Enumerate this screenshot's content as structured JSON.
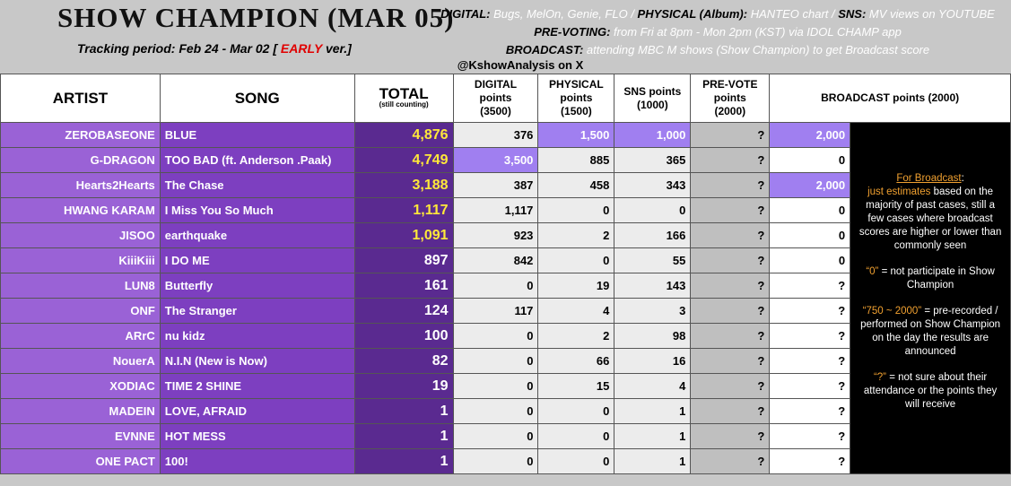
{
  "header": {
    "title": "SHOW CHAMPION (MAR 05)",
    "tracking": [
      {
        "text": "Tracking period: Feb 24 - Mar 02 [ ",
        "color": "#000000"
      },
      {
        "text": "EARLY",
        "color": "#e00000"
      },
      {
        "text": " ver.]",
        "color": "#000000"
      }
    ],
    "info": [
      [
        {
          "text": "DIGITAL: ",
          "style": "label"
        },
        {
          "text": "Bugs, MelOn, Genie, FLO / ",
          "style": "value"
        },
        {
          "text": "PHYSICAL (Album): ",
          "style": "label"
        },
        {
          "text": "HANTEO chart / ",
          "style": "value"
        },
        {
          "text": "SNS: ",
          "style": "label"
        },
        {
          "text": "MV views on YOUTUBE",
          "style": "value"
        }
      ],
      [
        {
          "text": "PRE-VOTING: ",
          "style": "label"
        },
        {
          "text": "from Fri at 8pm - Mon 2pm (KST) via IDOL CHAMP app",
          "style": "value"
        }
      ],
      [
        {
          "text": "BROADCAST: ",
          "style": "label"
        },
        {
          "text": "attending MBC M shows (Show Champion) to get Broadcast score",
          "style": "value"
        }
      ]
    ],
    "credit": "@KshowAnalysis on X"
  },
  "table": {
    "columns": [
      {
        "lines": [
          "ARTIST"
        ]
      },
      {
        "lines": [
          "SONG"
        ]
      },
      {
        "lines": [
          "TOTAL"
        ],
        "sub": "(still counting)"
      },
      {
        "lines": [
          "DIGITAL",
          "points",
          "(3500)"
        ]
      },
      {
        "lines": [
          "PHYSICAL",
          "points",
          "(1500)"
        ]
      },
      {
        "lines": [
          "SNS points",
          "(1000)"
        ]
      },
      {
        "lines": [
          "PRE-VOTE",
          "points",
          "(2000)"
        ]
      },
      {
        "lines": [
          "BROADCAST points (2000)"
        ]
      }
    ],
    "rows": [
      {
        "artist": "ZEROBASEONE",
        "song": "BLUE",
        "total": "4,876",
        "digital": "376",
        "physical": "1,500",
        "sns": "1,000",
        "prevote": "?",
        "broadcast": "2,000",
        "highlight": [
          "physical",
          "sns",
          "broadcast"
        ],
        "top": true
      },
      {
        "artist": "G-DRAGON",
        "song": "TOO BAD (ft. Anderson .Paak)",
        "total": "4,749",
        "digital": "3,500",
        "physical": "885",
        "sns": "365",
        "prevote": "?",
        "broadcast": "0",
        "highlight": [
          "digital"
        ],
        "top": true
      },
      {
        "artist": "Hearts2Hearts",
        "song": "The Chase",
        "total": "3,188",
        "digital": "387",
        "physical": "458",
        "sns": "343",
        "prevote": "?",
        "broadcast": "2,000",
        "highlight": [
          "broadcast"
        ],
        "top": true
      },
      {
        "artist": "HWANG KARAM",
        "song": "I Miss You So Much",
        "total": "1,117",
        "digital": "1,117",
        "physical": "0",
        "sns": "0",
        "prevote": "?",
        "broadcast": "0",
        "highlight": [],
        "top": true
      },
      {
        "artist": "JISOO",
        "song": "earthquake",
        "total": "1,091",
        "digital": "923",
        "physical": "2",
        "sns": "166",
        "prevote": "?",
        "broadcast": "0",
        "highlight": [],
        "top": true
      },
      {
        "artist": "KiiiKiii",
        "song": "I DO ME",
        "total": "897",
        "digital": "842",
        "physical": "0",
        "sns": "55",
        "prevote": "?",
        "broadcast": "0",
        "highlight": [],
        "top": false
      },
      {
        "artist": "LUN8",
        "song": "Butterfly",
        "total": "161",
        "digital": "0",
        "physical": "19",
        "sns": "143",
        "prevote": "?",
        "broadcast": "?",
        "highlight": [],
        "top": false
      },
      {
        "artist": "ONF",
        "song": "The Stranger",
        "total": "124",
        "digital": "117",
        "physical": "4",
        "sns": "3",
        "prevote": "?",
        "broadcast": "?",
        "highlight": [],
        "top": false
      },
      {
        "artist": "ARrC",
        "song": "nu kidz",
        "total": "100",
        "digital": "0",
        "physical": "2",
        "sns": "98",
        "prevote": "?",
        "broadcast": "?",
        "highlight": [],
        "top": false
      },
      {
        "artist": "NouerA",
        "song": "N.I.N (New is Now)",
        "total": "82",
        "digital": "0",
        "physical": "66",
        "sns": "16",
        "prevote": "?",
        "broadcast": "?",
        "highlight": [],
        "top": false
      },
      {
        "artist": "XODIAC",
        "song": "TIME 2 SHINE",
        "total": "19",
        "digital": "0",
        "physical": "15",
        "sns": "4",
        "prevote": "?",
        "broadcast": "?",
        "highlight": [],
        "top": false
      },
      {
        "artist": "MADEIN",
        "song": "LOVE, AFRAID",
        "total": "1",
        "digital": "0",
        "physical": "0",
        "sns": "1",
        "prevote": "?",
        "broadcast": "?",
        "highlight": [],
        "top": false
      },
      {
        "artist": "EVNNE",
        "song": "HOT MESS",
        "total": "1",
        "digital": "0",
        "physical": "0",
        "sns": "1",
        "prevote": "?",
        "broadcast": "?",
        "highlight": [],
        "top": false
      },
      {
        "artist": "ONE PACT",
        "song": "100!",
        "total": "1",
        "digital": "0",
        "physical": "0",
        "sns": "1",
        "prevote": "?",
        "broadcast": "?",
        "highlight": [],
        "top": false
      }
    ]
  },
  "note": [
    [
      {
        "text": "For Broadcast",
        "color": "#f0a030",
        "underline": true
      },
      {
        "text": ":",
        "color": "#ffffff"
      }
    ],
    [
      {
        "text": "just estimates",
        "color": "#f0a030"
      },
      {
        "text": " based on the majority of past cases, still a few cases where broadcast scores are higher or lower than commonly seen",
        "color": "#ffffff"
      }
    ],
    [
      {
        "text": "“0”",
        "color": "#f0a030"
      },
      {
        "text": " = not participate in Show Champion",
        "color": "#ffffff"
      }
    ],
    [
      {
        "text": "“750 ~ 2000”",
        "color": "#f0a030"
      },
      {
        "text": " = pre-recorded / performed on Show Champion on the day the results are announced",
        "color": "#ffffff"
      }
    ],
    [
      {
        "text": "“?”",
        "color": "#f0a030"
      },
      {
        "text": " = not sure about their attendance or the points they will receive",
        "color": "#ffffff"
      }
    ]
  ]
}
